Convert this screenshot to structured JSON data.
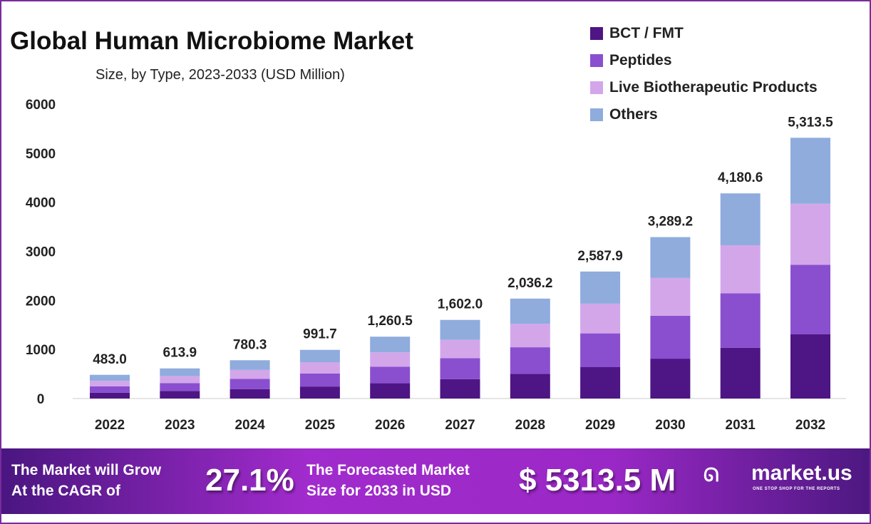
{
  "chart_data": {
    "type": "bar",
    "stacked": true,
    "title": "Global Human Microbiome Market",
    "subtitle": "Size, by Type, 2023-2033 (USD Million)",
    "categories": [
      "2022",
      "2023",
      "2024",
      "2025",
      "2026",
      "2027",
      "2028",
      "2029",
      "2030",
      "2031",
      "2032"
    ],
    "totals": [
      "483.0",
      "613.9",
      "780.3",
      "991.7",
      "1,260.5",
      "1,602.0",
      "2,036.2",
      "2,587.9",
      "3,289.2",
      "4,180.6",
      "5,313.5"
    ],
    "series": [
      {
        "name": "BCT / FMT",
        "color": "#4e1585",
        "values": [
          119.3,
          151.6,
          192.7,
          244.9,
          311.3,
          395.7,
          502.9,
          639.2,
          812.4,
          1032.6,
          1312.4
        ]
      },
      {
        "name": "Peptides",
        "color": "#8a4fcf",
        "values": [
          128.5,
          163.3,
          207.6,
          263.8,
          335.3,
          426.1,
          541.6,
          688.4,
          874.9,
          1112.0,
          1413.4
        ]
      },
      {
        "name": "Live Biotherapeutic Products",
        "color": "#d3a6ea",
        "values": [
          113.0,
          143.7,
          182.6,
          232.1,
          295.0,
          374.9,
          476.5,
          605.6,
          769.7,
          978.3,
          1243.4
        ]
      },
      {
        "name": "Others",
        "color": "#8facdd",
        "values": [
          122.2,
          155.3,
          197.4,
          250.9,
          318.9,
          405.3,
          515.2,
          654.7,
          832.2,
          1057.7,
          1344.3
        ]
      }
    ],
    "ylim": [
      0,
      6000
    ],
    "yticks": [
      "0",
      "1000",
      "2000",
      "3000",
      "4000",
      "5000",
      "6000"
    ],
    "grid": false,
    "legend": "top-right"
  },
  "banner": {
    "grow_line1": "The Market will Grow",
    "grow_line2": "At the CAGR of",
    "cagr": "27.1%",
    "fc_line1": "The Forecasted Market",
    "fc_line2": "Size for 2033 in USD",
    "forecast": "$ 5313.5 M",
    "brand": "market.us",
    "tagline": "ONE STOP SHOP FOR THE REPORTS"
  }
}
